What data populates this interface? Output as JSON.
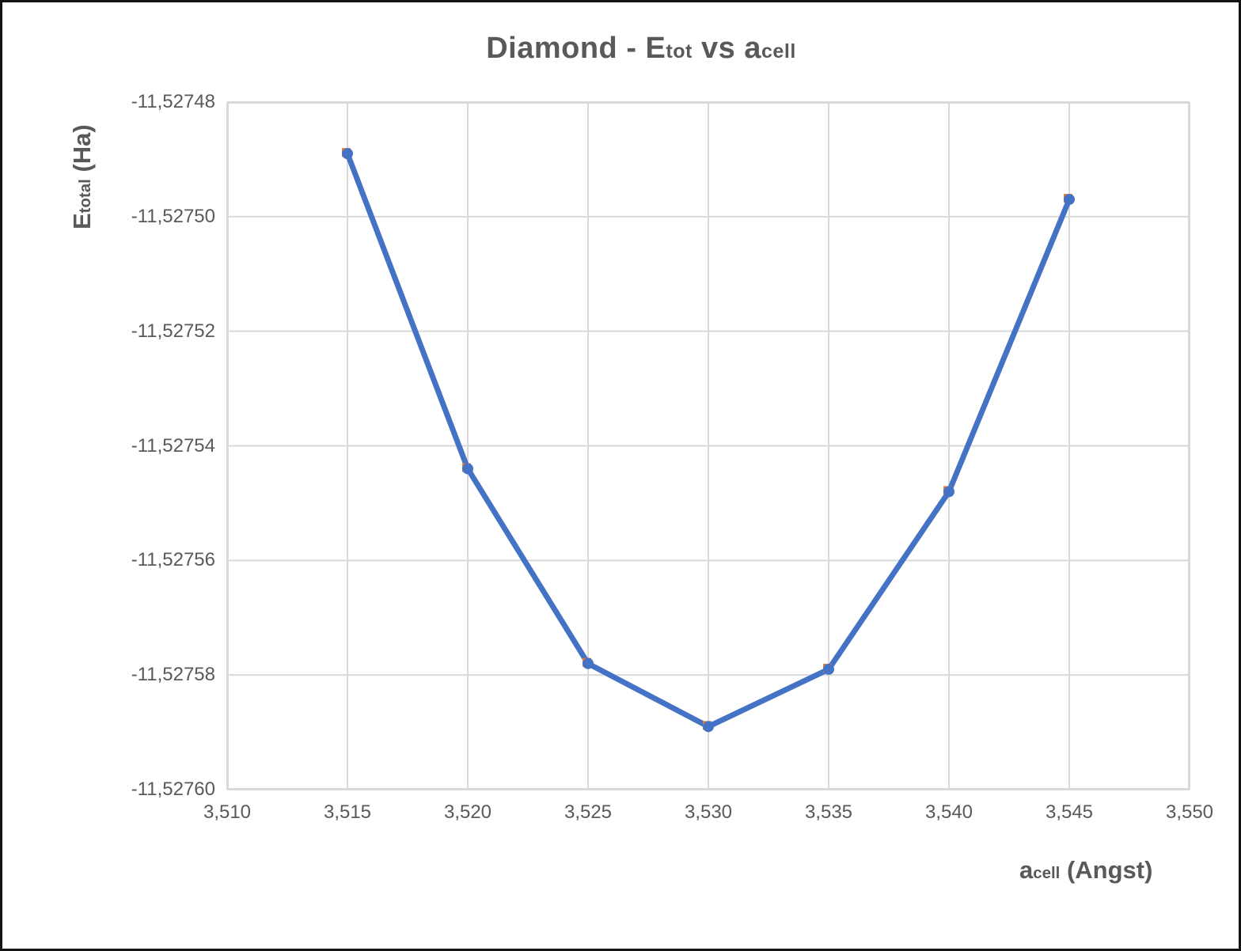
{
  "title": {
    "prefix": "Diamond - E",
    "sub1": "tot",
    "mid": " vs a",
    "sub2": "cell"
  },
  "y_axis_title": {
    "prefix": "E",
    "sub": "total",
    "suffix": " (Ha)"
  },
  "x_axis_title": {
    "prefix": "a",
    "sub": "cell",
    "suffix": " (Angst)"
  },
  "colors": {
    "line": "#4472C4",
    "marker": "#4472C4",
    "marker_secondary": "#ED7D31",
    "grid": "#D9D9D9",
    "plot_border": "#D9D9D9",
    "text": "#595959",
    "frame": "#141414",
    "background": "#FFFFFF"
  },
  "chart_data": {
    "type": "line",
    "title": "Diamond - Etot vs acell",
    "xlabel": "acell (Angst)",
    "ylabel": "Etotal (Ha)",
    "grid": true,
    "legend": false,
    "x": [
      3.515,
      3.52,
      3.525,
      3.53,
      3.535,
      3.54,
      3.545
    ],
    "y": [
      -11.527489,
      -11.527544,
      -11.527578,
      -11.527589,
      -11.527579,
      -11.527548,
      -11.527497
    ],
    "xlim": [
      3.51,
      3.55
    ],
    "ylim": [
      -11.5276,
      -11.52748
    ],
    "x_ticks": {
      "values": [
        3.51,
        3.515,
        3.52,
        3.525,
        3.53,
        3.535,
        3.54,
        3.545,
        3.55
      ],
      "labels": [
        "3,510",
        "3,515",
        "3,520",
        "3,525",
        "3,530",
        "3,535",
        "3,540",
        "3,545",
        "3,550"
      ]
    },
    "y_ticks": {
      "values": [
        -11.52748,
        -11.5275,
        -11.52752,
        -11.52754,
        -11.52756,
        -11.52758,
        -11.5276
      ],
      "labels": [
        "-11,52748",
        "-11,52750",
        "-11,52752",
        "-11,52754",
        "-11,52756",
        "-11,52758",
        "-11,52760"
      ]
    }
  }
}
